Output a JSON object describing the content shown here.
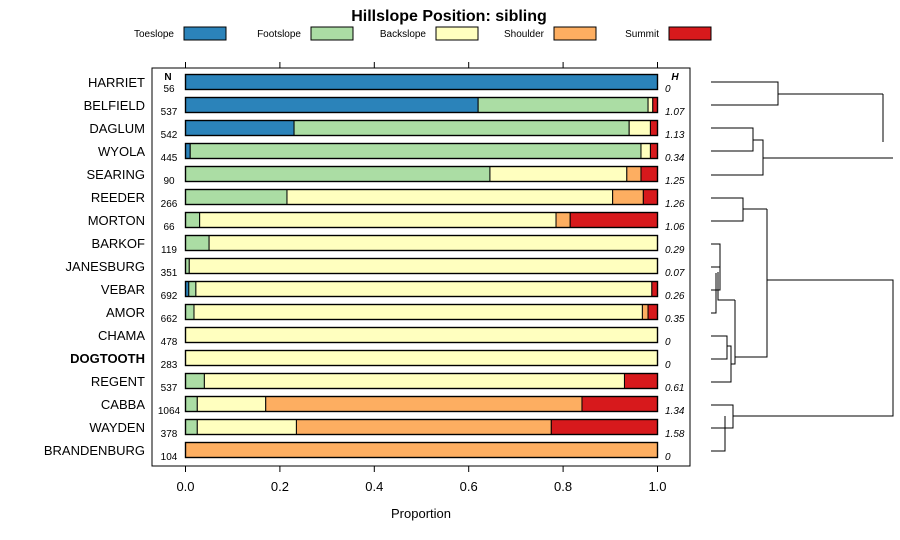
{
  "chart_data": {
    "type": "stacked-bar",
    "title": "Hillslope Position: sibling",
    "xlabel": "Proportion",
    "xlim": [
      0,
      1
    ],
    "x_ticks": [
      "0.0",
      "0.2",
      "0.4",
      "0.6",
      "0.8",
      "1.0"
    ],
    "n_header": "N",
    "h_header": "H",
    "legend": [
      {
        "name": "Toeslope",
        "color": "#2b83ba"
      },
      {
        "name": "Footslope",
        "color": "#abdda4"
      },
      {
        "name": "Backslope",
        "color": "#ffffbf"
      },
      {
        "name": "Shoulder",
        "color": "#fdae61"
      },
      {
        "name": "Summit",
        "color": "#d7191c"
      }
    ],
    "rows": [
      {
        "name": "HARRIET",
        "n": "56",
        "h": "0",
        "bold": false,
        "values": [
          1.0,
          0,
          0,
          0,
          0
        ]
      },
      {
        "name": "BELFIELD",
        "n": "537",
        "h": "1.07",
        "bold": false,
        "values": [
          0.62,
          0.36,
          0.01,
          0,
          0.01
        ]
      },
      {
        "name": "DAGLUM",
        "n": "542",
        "h": "1.13",
        "bold": false,
        "values": [
          0.23,
          0.71,
          0.045,
          0,
          0.015
        ]
      },
      {
        "name": "WYOLA",
        "n": "445",
        "h": "0.34",
        "bold": false,
        "values": [
          0.01,
          0.955,
          0.02,
          0,
          0.015
        ]
      },
      {
        "name": "SEARING",
        "n": "90",
        "h": "1.25",
        "bold": false,
        "values": [
          0,
          0.645,
          0.29,
          0.03,
          0.035
        ]
      },
      {
        "name": "REEDER",
        "n": "266",
        "h": "1.26",
        "bold": false,
        "values": [
          0,
          0.215,
          0.69,
          0.065,
          0.03
        ]
      },
      {
        "name": "MORTON",
        "n": "66",
        "h": "1.06",
        "bold": false,
        "values": [
          0,
          0.03,
          0.755,
          0.03,
          0.185
        ]
      },
      {
        "name": "BARKOF",
        "n": "119",
        "h": "0.29",
        "bold": false,
        "values": [
          0,
          0.05,
          0.95,
          0,
          0
        ]
      },
      {
        "name": "JANESBURG",
        "n": "351",
        "h": "0.07",
        "bold": false,
        "values": [
          0,
          0.008,
          0.992,
          0,
          0
        ]
      },
      {
        "name": "VEBAR",
        "n": "692",
        "h": "0.26",
        "bold": false,
        "values": [
          0.007,
          0.015,
          0.966,
          0,
          0.012
        ]
      },
      {
        "name": "AMOR",
        "n": "662",
        "h": "0.35",
        "bold": false,
        "values": [
          0,
          0.018,
          0.95,
          0.012,
          0.02
        ]
      },
      {
        "name": "CHAMA",
        "n": "478",
        "h": "0",
        "bold": false,
        "values": [
          0,
          0,
          1.0,
          0,
          0
        ]
      },
      {
        "name": "DOGTOOTH",
        "n": "283",
        "h": "0",
        "bold": true,
        "values": [
          0,
          0,
          1.0,
          0,
          0
        ]
      },
      {
        "name": "REGENT",
        "n": "537",
        "h": "0.61",
        "bold": false,
        "values": [
          0,
          0.04,
          0.89,
          0,
          0.07
        ]
      },
      {
        "name": "CABBA",
        "n": "1064",
        "h": "1.34",
        "bold": false,
        "values": [
          0,
          0.025,
          0.145,
          0.67,
          0.16
        ]
      },
      {
        "name": "WAYDEN",
        "n": "378",
        "h": "1.58",
        "bold": false,
        "values": [
          0,
          0.025,
          0.21,
          0.54,
          0.225
        ]
      },
      {
        "name": "BRANDENBURG",
        "n": "104",
        "h": "0",
        "bold": false,
        "values": [
          0,
          0,
          0,
          1.0,
          0
        ]
      }
    ]
  }
}
